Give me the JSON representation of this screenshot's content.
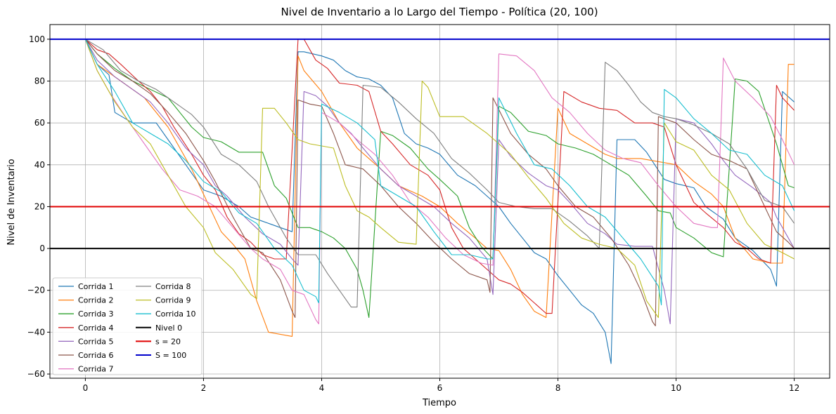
{
  "chart_data": {
    "type": "line",
    "title": "Nivel de Inventario a lo Largo del Tiempo - Política (20, 100)",
    "xlabel": "Tiempo",
    "ylabel": "Nivel de Inventario",
    "xlim": [
      -0.6,
      12.6
    ],
    "ylim": [
      -62,
      107
    ],
    "xticks": [
      0,
      2,
      4,
      6,
      8,
      10,
      12
    ],
    "yticks": [
      -60,
      -40,
      -20,
      0,
      20,
      40,
      60,
      80,
      100
    ],
    "grid": true,
    "legend_position": "bottom-left",
    "series": [
      {
        "name": "Corrida 1",
        "color": "#1f77b4",
        "x": [
          0,
          0.2,
          0.4,
          0.5,
          0.8,
          1.2,
          1.4,
          1.8,
          2.0,
          2.3,
          2.6,
          2.8,
          3.0,
          3.3,
          3.5,
          3.6,
          3.7,
          4.0,
          4.2,
          4.4,
          4.6,
          4.8,
          5.0,
          5.2,
          5.4,
          5.6,
          5.8,
          6.0,
          6.3,
          6.6,
          6.8,
          7.0,
          7.2,
          7.4,
          7.6,
          7.8,
          8.0,
          8.2,
          8.4,
          8.6,
          8.8,
          8.9,
          9.0,
          9.3,
          9.5,
          9.8,
          10.0,
          10.3,
          10.5,
          10.8,
          11.0,
          11.3,
          11.6,
          11.7,
          11.8,
          12.0
        ],
        "y": [
          100,
          88,
          83,
          65,
          60,
          60,
          52,
          36,
          28,
          25,
          20,
          15,
          13,
          10,
          8,
          94,
          94,
          92,
          90,
          85,
          82,
          81,
          78,
          72,
          55,
          50,
          48,
          45,
          35,
          30,
          25,
          20,
          12,
          5,
          -2,
          -5,
          -13,
          -20,
          -27,
          -31,
          -40,
          -55,
          52,
          52,
          46,
          33,
          31,
          29,
          20,
          14,
          5,
          -1,
          -10,
          -18,
          75,
          70
        ]
      },
      {
        "name": "Corrida 2",
        "color": "#ff7f0e",
        "x": [
          0,
          0.2,
          0.4,
          0.6,
          1.0,
          1.4,
          1.8,
          2.1,
          2.3,
          2.5,
          2.7,
          2.9,
          3.1,
          3.3,
          3.5,
          3.6,
          3.7,
          4.0,
          4.3,
          4.6,
          5.0,
          5.3,
          5.7,
          6.0,
          6.3,
          6.6,
          6.8,
          7.0,
          7.2,
          7.4,
          7.6,
          7.8,
          8.0,
          8.2,
          8.5,
          8.8,
          9.0,
          9.4,
          9.8,
          10.0,
          10.3,
          10.6,
          10.8,
          11.0,
          11.3,
          11.6,
          11.8,
          11.9,
          12.0
        ],
        "y": [
          100,
          88,
          84,
          80,
          72,
          58,
          38,
          20,
          8,
          2,
          -5,
          -25,
          -40,
          -41,
          -42,
          92,
          85,
          75,
          60,
          48,
          38,
          30,
          25,
          20,
          12,
          5,
          0,
          -1,
          -10,
          -22,
          -30,
          -33,
          67,
          55,
          50,
          45,
          43,
          43,
          41,
          40,
          32,
          26,
          20,
          5,
          -5,
          -7,
          -7,
          88,
          88
        ]
      },
      {
        "name": "Corrida 3",
        "color": "#2ca02c",
        "x": [
          0,
          0.2,
          0.5,
          0.8,
          1.1,
          1.4,
          1.6,
          1.8,
          2.0,
          2.3,
          2.6,
          2.8,
          3.0,
          3.2,
          3.4,
          3.6,
          3.8,
          4.0,
          4.2,
          4.4,
          4.6,
          4.7,
          4.8,
          5.0,
          5.2,
          5.5,
          5.8,
          6.0,
          6.3,
          6.5,
          6.7,
          6.9,
          7.0,
          7.2,
          7.5,
          7.8,
          8.0,
          8.3,
          8.6,
          8.9,
          9.2,
          9.5,
          9.7,
          9.9,
          10.0,
          10.3,
          10.6,
          10.8,
          11.0,
          11.2,
          11.4,
          11.7,
          11.9,
          12.0
        ],
        "y": [
          100,
          93,
          86,
          80,
          76,
          72,
          65,
          58,
          53,
          51,
          46,
          46,
          46,
          30,
          24,
          10,
          10,
          8,
          5,
          0,
          -10,
          -20,
          -33,
          56,
          54,
          48,
          38,
          33,
          25,
          10,
          1,
          -5,
          68,
          65,
          56,
          54,
          50,
          48,
          45,
          40,
          35,
          25,
          18,
          17,
          10,
          5,
          -2,
          -4,
          81,
          80,
          75,
          50,
          30,
          29
        ]
      },
      {
        "name": "Corrida 4",
        "color": "#d62728",
        "x": [
          0,
          0.2,
          0.4,
          0.6,
          0.9,
          1.1,
          1.3,
          1.5,
          1.8,
          2.0,
          2.2,
          2.4,
          2.6,
          2.8,
          3.0,
          3.2,
          3.4,
          3.6,
          3.7,
          3.9,
          4.1,
          4.3,
          4.6,
          4.8,
          5.0,
          5.2,
          5.5,
          5.8,
          6.0,
          6.2,
          6.4,
          6.6,
          6.8,
          7.0,
          7.2,
          7.4,
          7.6,
          7.8,
          7.9,
          8.1,
          8.4,
          8.7,
          9.0,
          9.3,
          9.6,
          9.8,
          10.0,
          10.3,
          10.5,
          10.8,
          11.0,
          11.2,
          11.4,
          11.6,
          11.7,
          11.8,
          12.0
        ],
        "y": [
          100,
          95,
          93,
          88,
          80,
          75,
          68,
          58,
          45,
          35,
          28,
          15,
          7,
          3,
          -3,
          -5,
          -5,
          100,
          100,
          90,
          86,
          79,
          78,
          75,
          56,
          50,
          40,
          35,
          28,
          10,
          0,
          -5,
          -10,
          -15,
          -17,
          -21,
          -26,
          -31,
          -31,
          75,
          70,
          67,
          66,
          60,
          60,
          58,
          40,
          22,
          17,
          10,
          3,
          0,
          -5,
          -7,
          78,
          72,
          66
        ]
      },
      {
        "name": "Corrida 5",
        "color": "#9467bd",
        "x": [
          0,
          0.2,
          0.5,
          0.8,
          1.1,
          1.4,
          1.7,
          2.0,
          2.2,
          2.4,
          2.7,
          3.0,
          3.3,
          3.5,
          3.6,
          3.7,
          3.9,
          4.1,
          4.3,
          4.5,
          4.7,
          5.0,
          5.3,
          5.6,
          5.9,
          6.2,
          6.5,
          6.8,
          6.9,
          7.0,
          7.2,
          7.5,
          7.8,
          8.0,
          8.2,
          8.5,
          8.8,
          9.0,
          9.3,
          9.6,
          9.8,
          9.9,
          10.0,
          10.3,
          10.6,
          10.8,
          11.0,
          11.3,
          11.6,
          11.7,
          11.9,
          12.0
        ],
        "y": [
          100,
          90,
          82,
          76,
          70,
          60,
          48,
          40,
          30,
          25,
          15,
          7,
          2,
          -5,
          -8,
          75,
          73,
          68,
          60,
          55,
          48,
          38,
          30,
          25,
          20,
          12,
          5,
          -5,
          -22,
          52,
          44,
          36,
          30,
          28,
          22,
          12,
          7,
          2,
          1,
          1,
          -20,
          -36,
          62,
          60,
          50,
          42,
          35,
          29,
          22,
          15,
          5,
          0
        ]
      },
      {
        "name": "Corrida 6",
        "color": "#8c564b",
        "x": [
          0,
          0.2,
          0.5,
          0.8,
          1.1,
          1.4,
          1.7,
          2.0,
          2.2,
          2.5,
          2.8,
          3.0,
          3.3,
          3.5,
          3.55,
          3.6,
          3.8,
          4.0,
          4.2,
          4.4,
          4.7,
          5.0,
          5.3,
          5.6,
          5.9,
          6.2,
          6.5,
          6.8,
          6.85,
          6.9,
          7.2,
          7.5,
          7.8,
          8.0,
          8.3,
          8.6,
          8.9,
          9.2,
          9.4,
          9.6,
          9.65,
          9.7,
          10.0,
          10.3,
          10.6,
          10.9,
          11.2,
          11.5,
          11.7,
          11.9,
          12.0
        ],
        "y": [
          100,
          93,
          85,
          80,
          74,
          65,
          55,
          42,
          32,
          15,
          0,
          -2,
          -15,
          -30,
          -33,
          71,
          69,
          68,
          55,
          40,
          38,
          30,
          20,
          12,
          3,
          -5,
          -12,
          -15,
          -21,
          72,
          55,
          45,
          38,
          30,
          20,
          15,
          5,
          -8,
          -20,
          -35,
          -37,
          63,
          60,
          52,
          45,
          42,
          38,
          20,
          8,
          3,
          0
        ]
      },
      {
        "name": "Corrida 7",
        "color": "#e377c2",
        "x": [
          0,
          0.2,
          0.4,
          0.7,
          1.0,
          1.3,
          1.6,
          1.9,
          2.2,
          2.5,
          2.8,
          3.0,
          3.3,
          3.5,
          3.7,
          3.9,
          3.95,
          4.0,
          4.3,
          4.6,
          4.9,
          5.2,
          5.5,
          5.8,
          6.1,
          6.4,
          6.7,
          6.9,
          7.0,
          7.3,
          7.6,
          7.9,
          8.2,
          8.5,
          8.8,
          9.1,
          9.4,
          9.7,
          10.0,
          10.3,
          10.6,
          10.7,
          10.8,
          11.0,
          11.3,
          11.6,
          11.8,
          12.0
        ],
        "y": [
          100,
          85,
          75,
          62,
          50,
          38,
          28,
          25,
          20,
          10,
          0,
          -5,
          -10,
          -20,
          -22,
          -34,
          -36,
          65,
          60,
          52,
          45,
          35,
          22,
          15,
          5,
          -3,
          -7,
          -8,
          93,
          92,
          85,
          72,
          65,
          55,
          47,
          43,
          41,
          30,
          20,
          12,
          10,
          10,
          91,
          80,
          72,
          63,
          52,
          40
        ]
      },
      {
        "name": "Corrida 8",
        "color": "#7f7f7f",
        "x": [
          0,
          0.3,
          0.6,
          0.9,
          1.2,
          1.5,
          1.8,
          2.0,
          2.3,
          2.6,
          2.9,
          3.1,
          3.4,
          3.6,
          3.9,
          4.1,
          4.3,
          4.5,
          4.6,
          4.7,
          5.0,
          5.3,
          5.6,
          5.9,
          6.2,
          6.5,
          6.8,
          7.0,
          7.3,
          7.6,
          7.9,
          8.2,
          8.5,
          8.7,
          8.8,
          9.0,
          9.2,
          9.4,
          9.6,
          9.8,
          10.0,
          10.3,
          10.6,
          10.9,
          11.2,
          11.5,
          11.8,
          12.0
        ],
        "y": [
          100,
          95,
          85,
          80,
          76,
          70,
          64,
          58,
          45,
          40,
          32,
          20,
          5,
          -3,
          -3,
          -12,
          -20,
          -28,
          -28,
          78,
          77,
          70,
          62,
          55,
          43,
          36,
          28,
          22,
          20,
          19,
          19,
          13,
          6,
          0,
          89,
          85,
          78,
          70,
          65,
          63,
          62,
          59,
          55,
          50,
          38,
          23,
          20,
          12
        ]
      },
      {
        "name": "Corrida 9",
        "color": "#bcbd22",
        "x": [
          0,
          0.2,
          0.5,
          0.8,
          1.1,
          1.4,
          1.7,
          2.0,
          2.2,
          2.5,
          2.8,
          2.9,
          3.0,
          3.2,
          3.4,
          3.6,
          3.8,
          4.0,
          4.2,
          4.4,
          4.6,
          4.8,
          5.0,
          5.3,
          5.6,
          5.7,
          5.8,
          6.0,
          6.4,
          6.8,
          7.2,
          7.5,
          7.8,
          8.1,
          8.4,
          8.7,
          9.0,
          9.3,
          9.5,
          9.7,
          9.8,
          10.0,
          10.3,
          10.6,
          10.9,
          11.2,
          11.5,
          11.8,
          12.0
        ],
        "y": [
          100,
          85,
          70,
          58,
          50,
          35,
          20,
          10,
          -2,
          -10,
          -22,
          -24,
          67,
          67,
          60,
          52,
          50,
          49,
          48,
          30,
          18,
          15,
          10,
          3,
          2,
          80,
          77,
          63,
          63,
          55,
          45,
          34,
          24,
          12,
          5,
          2,
          0,
          -8,
          -25,
          -33,
          60,
          51,
          47,
          35,
          28,
          12,
          2,
          -2,
          -5
        ]
      },
      {
        "name": "Corrida 10",
        "color": "#17becf",
        "x": [
          0,
          0.2,
          0.5,
          0.8,
          1.1,
          1.4,
          1.7,
          2.0,
          2.3,
          2.6,
          2.9,
          3.2,
          3.5,
          3.7,
          3.9,
          3.95,
          4.0,
          4.3,
          4.6,
          4.9,
          5.0,
          5.3,
          5.6,
          5.9,
          6.2,
          6.5,
          6.8,
          6.9,
          7.0,
          7.3,
          7.6,
          7.9,
          8.2,
          8.5,
          8.8,
          9.1,
          9.4,
          9.7,
          9.75,
          9.8,
          10.0,
          10.3,
          10.6,
          10.9,
          11.2,
          11.5,
          11.8,
          12.0
        ],
        "y": [
          100,
          88,
          75,
          60,
          55,
          50,
          42,
          32,
          27,
          17,
          12,
          0,
          -8,
          -20,
          -23,
          -26,
          69,
          65,
          60,
          52,
          30,
          25,
          20,
          8,
          -3,
          -3,
          -5,
          -5,
          72,
          55,
          40,
          38,
          30,
          20,
          15,
          5,
          -5,
          -18,
          -27,
          76,
          72,
          62,
          55,
          47,
          45,
          35,
          30,
          18
        ]
      },
      {
        "name": "Nivel 0",
        "color": "#000000",
        "width": 2,
        "x": [
          -0.6,
          12.6
        ],
        "y": [
          0,
          0
        ]
      },
      {
        "name": "s = 20",
        "color": "#e00000",
        "width": 2,
        "x": [
          -0.6,
          12.6
        ],
        "y": [
          20,
          20
        ]
      },
      {
        "name": "S = 100",
        "color": "#0000cc",
        "width": 2,
        "x": [
          -0.6,
          12.6
        ],
        "y": [
          100,
          100
        ]
      }
    ]
  }
}
